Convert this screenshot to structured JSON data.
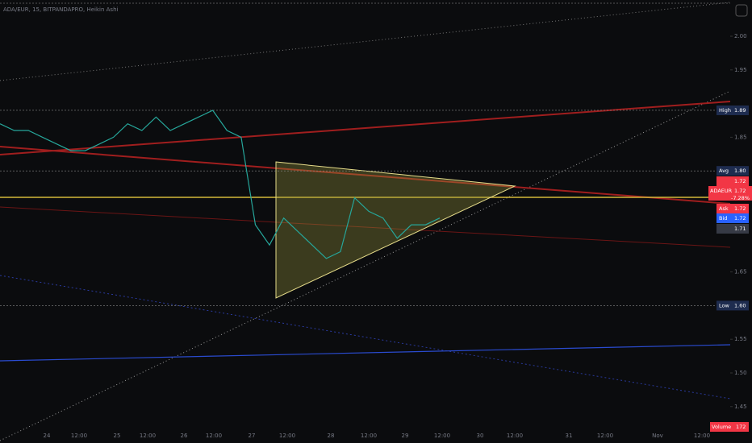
{
  "header": {
    "symbol": "ADA/EUR, 15, BITPANDAPRO, Heikin Ashi"
  },
  "price_axis": {
    "ticks": [
      {
        "value": 2.0,
        "label": "2.00"
      },
      {
        "value": 1.95,
        "label": "1.95"
      },
      {
        "value": 1.85,
        "label": "1.85"
      },
      {
        "value": 1.65,
        "label": "1.65"
      },
      {
        "value": 1.55,
        "label": "1.55"
      },
      {
        "value": 1.5,
        "label": "1.50"
      },
      {
        "value": 1.45,
        "label": "1.45"
      }
    ],
    "markers": [
      {
        "name": "High",
        "value": 1.89,
        "value_label": "1.89",
        "color": "#1e2c4f"
      },
      {
        "name": "Avg",
        "value": 1.8,
        "value_label": "1.80",
        "color": "#1e2c4f"
      },
      {
        "name": "Low",
        "value": 1.6,
        "value_label": "1.60",
        "color": "#1e2c4f"
      }
    ],
    "quotes": [
      {
        "name": "",
        "value": 1.72,
        "value_label": "1.72",
        "color": "#f23645"
      },
      {
        "name": "ADAEUR",
        "value": 1.72,
        "value_label": "1.72",
        "change": "-7.28%",
        "color": "#f23645"
      },
      {
        "name": "Ask",
        "value": 1.72,
        "value_label": "1.72",
        "color": "#f23645"
      },
      {
        "name": "Bid",
        "value": 1.72,
        "value_label": "1.72",
        "color": "#2962ff"
      },
      {
        "name": "",
        "value": 1.71,
        "value_label": "1.71",
        "color": "#363a45"
      }
    ],
    "volume": {
      "name": "Volume",
      "value_label": "172"
    }
  },
  "time_axis": [
    "24",
    "12:00",
    "25",
    "12:00",
    "26",
    "12:00",
    "27",
    "12:00",
    "28",
    "12:00",
    "29",
    "12:00",
    "30",
    "12:00",
    "31",
    "12:00",
    "Nov",
    "12:00"
  ],
  "price": {
    "color": "#26a69a",
    "values": [
      1.87,
      1.86,
      1.86,
      1.85,
      1.84,
      1.83,
      1.83,
      1.84,
      1.85,
      1.87,
      1.86,
      1.88,
      1.86,
      1.87,
      1.88,
      1.89,
      1.86,
      1.85,
      1.72,
      1.69,
      1.73,
      1.71,
      1.69,
      1.67,
      1.68,
      1.76,
      1.74,
      1.73,
      1.7,
      1.72,
      1.72,
      1.73
    ]
  }
}
